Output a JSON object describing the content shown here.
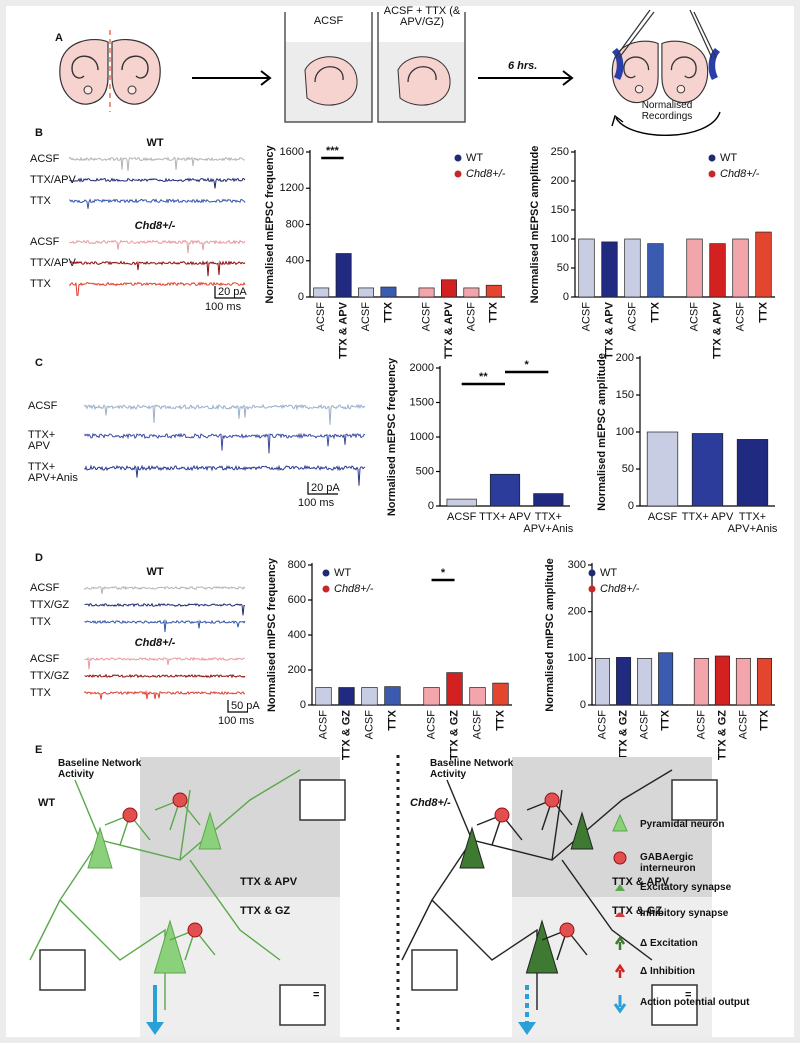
{
  "panel_a": {
    "label": "A",
    "beaker_1": "ACSF",
    "beaker_2": "ACSF + TTX (& APV/GZ)",
    "arrow": "6 hrs.",
    "recordings": "Normalised Recordings"
  },
  "panel_b": {
    "label": "B",
    "traces": {
      "groups": [
        {
          "name": "WT",
          "rows": [
            "ACSF",
            "TTX/APV",
            "TTX"
          ]
        },
        {
          "name": "Chd8+/-",
          "rows": [
            "ACSF",
            "TTX/APV",
            "TTX"
          ]
        }
      ],
      "scale_y": "20 pA",
      "scale_x": "100 ms"
    },
    "charts": [
      {
        "type": "bar",
        "ylabel": "Normalised mEPSC frequency",
        "categories": [
          "ACSF",
          "TTX & APV",
          "ACSF",
          "TTX"
        ],
        "ylim": [
          0,
          1600
        ],
        "yticks": [
          0,
          400,
          800,
          1200,
          1600
        ],
        "significance": [
          "***"
        ],
        "series": [
          {
            "name": "WT",
            "color": "#1f2a70",
            "colors": [
              "#c9cde3",
              "#1f2a80",
              "#c9cde3",
              "#3a5bb0"
            ],
            "values": [
              100,
              480,
              100,
              110
            ]
          },
          {
            "name": "Chd8+/-",
            "color": "#c62828",
            "colors": [
              "#f2a6ac",
              "#d32020",
              "#f2a6ac",
              "#e4452e"
            ],
            "values": [
              100,
              190,
              100,
              130
            ]
          }
        ]
      },
      {
        "type": "bar",
        "ylabel": "Normalised mEPSC amplitude",
        "categories": [
          "ACSF",
          "TTX & APV",
          "ACSF",
          "TTX"
        ],
        "ylim": [
          0,
          250
        ],
        "yticks": [
          0,
          50,
          100,
          150,
          200,
          250
        ],
        "significance": [],
        "series": [
          {
            "name": "WT",
            "color": "#1f2a70",
            "colors": [
              "#c9cde3",
              "#1f2a80",
              "#c9cde3",
              "#3a5bb0"
            ],
            "values": [
              100,
              95,
              100,
              92
            ]
          },
          {
            "name": "Chd8+/-",
            "color": "#c62828",
            "colors": [
              "#f2a6ac",
              "#d32020",
              "#f2a6ac",
              "#e4452e"
            ],
            "values": [
              100,
              92,
              100,
              112
            ]
          }
        ]
      }
    ]
  },
  "panel_c": {
    "label": "C",
    "traces": {
      "rows": [
        "ACSF",
        "TTX+ APV",
        "TTX+ APV+Anis"
      ],
      "scale_y": "20 pA",
      "scale_x": "100 ms"
    },
    "charts": [
      {
        "type": "bar",
        "ylabel": "Normalised mEPSC frequency",
        "categories": [
          "ACSF",
          "TTX+ APV",
          "TTX+ APV+Anis"
        ],
        "ylim": [
          0,
          2000
        ],
        "yticks": [
          0,
          500,
          1000,
          1500,
          2000
        ],
        "significance": [
          "**",
          "*"
        ],
        "colors": [
          "#c9cde3",
          "#2b3c9a",
          "#1f2a80"
        ],
        "values": [
          100,
          460,
          180
        ]
      },
      {
        "type": "bar",
        "ylabel": "Normalised mEPSC amplitude",
        "categories": [
          "ACSF",
          "TTX+ APV",
          "TTX+ APV+Anis"
        ],
        "ylim": [
          0,
          200
        ],
        "yticks": [
          0,
          50,
          100,
          150,
          200
        ],
        "significance": [],
        "colors": [
          "#c9cde3",
          "#2b3c9a",
          "#1f2a80"
        ],
        "values": [
          100,
          98,
          90
        ]
      }
    ]
  },
  "panel_d": {
    "label": "D",
    "traces": {
      "groups": [
        {
          "name": "WT",
          "rows": [
            "ACSF",
            "TTX/GZ",
            "TTX"
          ]
        },
        {
          "name": "Chd8+/-",
          "rows": [
            "ACSF",
            "TTX/GZ",
            "TTX"
          ]
        }
      ],
      "scale_y": "50 pA",
      "scale_x": "100 ms"
    },
    "charts": [
      {
        "type": "bar",
        "ylabel": "Normalised mIPSC frequency",
        "categories": [
          "ACSF",
          "TTX & GZ",
          "ACSF",
          "TTX"
        ],
        "ylim": [
          0,
          800
        ],
        "yticks": [
          0,
          200,
          400,
          600,
          800
        ],
        "significance": [
          "*"
        ],
        "series": [
          {
            "name": "WT",
            "color": "#1f2a70",
            "colors": [
              "#c9cde3",
              "#1f2a80",
              "#c9cde3",
              "#3a5bb0"
            ],
            "values": [
              100,
              100,
              100,
              105
            ]
          },
          {
            "name": "Chd8+/-",
            "color": "#c62828",
            "colors": [
              "#f2a6ac",
              "#d32020",
              "#f2a6ac",
              "#e4452e"
            ],
            "values": [
              100,
              185,
              100,
              125
            ]
          }
        ]
      },
      {
        "type": "bar",
        "ylabel": "Normalised mIPSC amplitude",
        "categories": [
          "ACSF",
          "TTX & GZ",
          "ACSF",
          "TTX"
        ],
        "ylim": [
          0,
          300
        ],
        "yticks": [
          0,
          100,
          200,
          300
        ],
        "significance": [],
        "series": [
          {
            "name": "WT",
            "color": "#1f2a70",
            "colors": [
              "#c9cde3",
              "#1f2a80",
              "#c9cde3",
              "#3a5bb0"
            ],
            "values": [
              100,
              102,
              100,
              112
            ]
          },
          {
            "name": "Chd8+/-",
            "color": "#c62828",
            "colors": [
              "#f2a6ac",
              "#d32020",
              "#f2a6ac",
              "#e4452e"
            ],
            "values": [
              100,
              105,
              100,
              100
            ]
          }
        ]
      }
    ]
  },
  "panel_e": {
    "label": "E",
    "left": {
      "title": "Baseline Network Activity",
      "genotype": "WT",
      "box_1": "TTX & APV",
      "box_2": "TTX & GZ",
      "eq": "="
    },
    "right": {
      "title": "Baseline Network Activity",
      "genotype": "Chd8+/-",
      "box_1": "TTX & APV",
      "box_2": "TTX & GZ",
      "eq": "="
    },
    "legend": [
      "Pyramidal neuron",
      "GABAergic interneuron",
      "Excitatory synapse",
      "Inhibitory synapse",
      "Δ Excitation",
      "Δ Inhibition",
      "Action potential output"
    ]
  }
}
